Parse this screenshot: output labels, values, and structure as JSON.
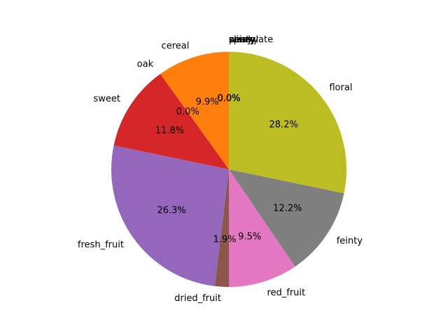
{
  "chart_data": {
    "type": "pie",
    "title": "",
    "start_angle_deg": 90,
    "direction": "counterclockwise",
    "slices": [
      {
        "label": "chocolate",
        "value": 0.0,
        "pct_label": "0.0%",
        "color": "#1f77b4"
      },
      {
        "label": "cereal",
        "value": 9.9,
        "pct_label": "9.9%",
        "color": "#ff7f0e"
      },
      {
        "label": "oak",
        "value": 0.0,
        "pct_label": "0.0%",
        "color": "#2ca02c"
      },
      {
        "label": "sweet",
        "value": 11.8,
        "pct_label": "11.8%",
        "color": "#d62728"
      },
      {
        "label": "fresh_fruit",
        "value": 26.3,
        "pct_label": "26.3%",
        "color": "#9467bd"
      },
      {
        "label": "dried_fruit",
        "value": 1.9,
        "pct_label": "1.9%",
        "color": "#8c564b"
      },
      {
        "label": "red_fruit",
        "value": 9.5,
        "pct_label": "9.5%",
        "color": "#e377c2"
      },
      {
        "label": "feinty",
        "value": 12.2,
        "pct_label": "12.2%",
        "color": "#7f7f7f"
      },
      {
        "label": "floral",
        "value": 28.2,
        "pct_label": "28.2%",
        "color": "#bcbd22"
      },
      {
        "label": "winey",
        "value": 0.0,
        "pct_label": "0.0%",
        "color": "#17becf"
      },
      {
        "label": "peaty",
        "value": 0.0,
        "pct_label": "0.0%",
        "color": "#1f77b4"
      },
      {
        "label": "smoky",
        "value": 0.0,
        "pct_label": "0.0%",
        "color": "#ff7f0e"
      },
      {
        "label": "spicy",
        "value": 0.0,
        "pct_label": "0.0%",
        "color": "#2ca02c"
      }
    ]
  }
}
